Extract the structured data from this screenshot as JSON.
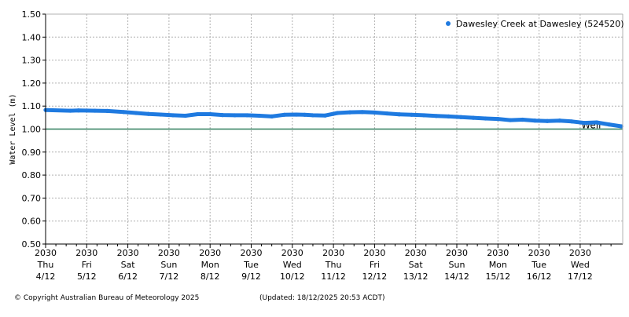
{
  "chart_data": {
    "type": "line",
    "title": "",
    "ylabel": "Water Level (m)",
    "xlabel": "",
    "ylim": [
      0.5,
      1.5
    ],
    "xlim": [
      0,
      14.0
    ],
    "grid": true,
    "legend": {
      "position": "top-right"
    },
    "y_ticks": [
      "1.50",
      "1.40",
      "1.30",
      "1.20",
      "1.10",
      "1.00",
      "0.90",
      "0.80",
      "0.70",
      "0.60",
      "0.50"
    ],
    "x_ticks": [
      {
        "time": "2030",
        "day": "Thu",
        "date": "4/12"
      },
      {
        "time": "2030",
        "day": "Fri",
        "date": "5/12"
      },
      {
        "time": "2030",
        "day": "Sat",
        "date": "6/12"
      },
      {
        "time": "2030",
        "day": "Sun",
        "date": "7/12"
      },
      {
        "time": "2030",
        "day": "Mon",
        "date": "8/12"
      },
      {
        "time": "2030",
        "day": "Tue",
        "date": "9/12"
      },
      {
        "time": "2030",
        "day": "Wed",
        "date": "10/12"
      },
      {
        "time": "2030",
        "day": "Thu",
        "date": "11/12"
      },
      {
        "time": "2030",
        "day": "Fri",
        "date": "12/12"
      },
      {
        "time": "2030",
        "day": "Sat",
        "date": "13/12"
      },
      {
        "time": "2030",
        "day": "Sun",
        "date": "14/12"
      },
      {
        "time": "2030",
        "day": "Mon",
        "date": "15/12"
      },
      {
        "time": "2030",
        "day": "Tue",
        "date": "16/12"
      },
      {
        "time": "2030",
        "day": "Wed",
        "date": "17/12"
      }
    ],
    "series": [
      {
        "name": "Dawesley Creek at Dawesley (524520)",
        "color": "#1f7ae0",
        "x": [
          0,
          0.6,
          0.8,
          1.2,
          1.5,
          1.9,
          2.2,
          2.5,
          2.8,
          3.1,
          3.4,
          3.7,
          4.0,
          4.3,
          4.6,
          4.9,
          5.2,
          5.5,
          5.8,
          6.1,
          6.3,
          6.5,
          6.8,
          7.1,
          7.4,
          7.7,
          8.0,
          8.3,
          8.6,
          8.9,
          9.2,
          9.5,
          9.8,
          10.1,
          10.4,
          10.7,
          11.0,
          11.3,
          11.6,
          11.9,
          12.2,
          12.5,
          12.8,
          13.1,
          13.4,
          13.7,
          14.0
        ],
        "y": [
          1.083,
          1.08,
          1.081,
          1.08,
          1.079,
          1.074,
          1.07,
          1.066,
          1.063,
          1.06,
          1.058,
          1.065,
          1.065,
          1.061,
          1.06,
          1.06,
          1.058,
          1.055,
          1.062,
          1.063,
          1.062,
          1.06,
          1.059,
          1.07,
          1.073,
          1.074,
          1.072,
          1.068,
          1.064,
          1.062,
          1.06,
          1.057,
          1.055,
          1.052,
          1.049,
          1.046,
          1.044,
          1.039,
          1.041,
          1.037,
          1.035,
          1.037,
          1.033,
          1.027,
          1.029,
          1.02,
          1.012
        ]
      }
    ],
    "reference_lines": [
      {
        "y": 1.0,
        "label": "Weir",
        "color": "#2e7d5b"
      }
    ]
  },
  "footer": {
    "copyright": "© Copyright Australian Bureau of Meteorology 2025",
    "updated": "(Updated: 18/12/2025 20:53 ACDT)"
  }
}
